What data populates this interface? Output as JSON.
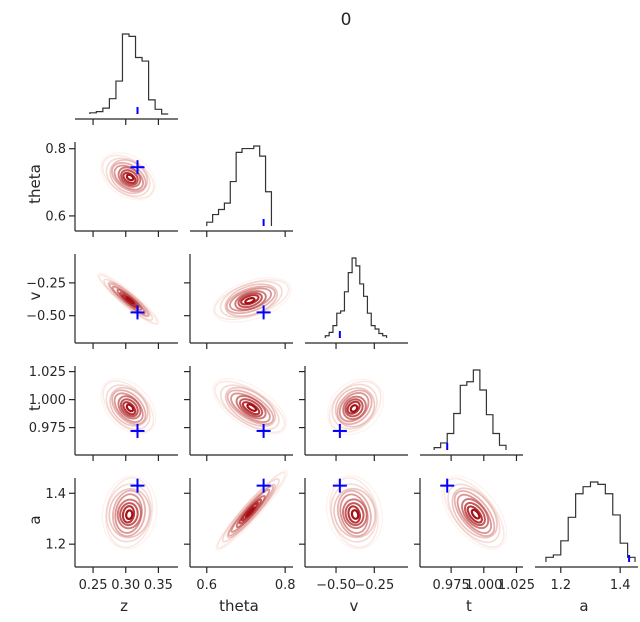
{
  "title": "0",
  "chart_data": {
    "type": "corner-plot",
    "title": "0",
    "parameters": [
      "z",
      "theta",
      "v",
      "t",
      "a"
    ],
    "axis_labels": [
      "z",
      "theta",
      "v",
      "t",
      "a"
    ],
    "ranges": {
      "z": [
        0.23,
        0.38
      ],
      "theta": [
        0.57,
        0.82
      ],
      "v": [
        -0.67,
        -0.03
      ],
      "t": [
        0.955,
        1.03
      ],
      "a": [
        1.13,
        1.46
      ]
    },
    "ticks": {
      "z": [
        0.25,
        0.3,
        0.35
      ],
      "theta": [
        0.6,
        0.8
      ],
      "v": [
        -0.5,
        -0.25
      ],
      "t": [
        0.975,
        1.0,
        1.025
      ],
      "a": [
        1.2,
        1.4
      ]
    },
    "tick_labels": {
      "z": [
        "0.25",
        "0.30",
        "0.35"
      ],
      "theta": [
        "0.6",
        "0.8"
      ],
      "v": [
        "−0.50",
        "−0.25"
      ],
      "v_x": [
        "−0.50",
        "−0.25"
      ],
      "t": [
        "0.975",
        "1.000",
        "1.025"
      ],
      "t_x": [
        "0.975",
        "1.000",
        "1.025"
      ],
      "a": [
        "1.2",
        "1.4"
      ]
    },
    "true_values": {
      "z": 0.318,
      "theta": 0.745,
      "v": -0.475,
      "t": 0.972,
      "a": 1.43
    },
    "histograms": {
      "z": {
        "edges": [
          0.245,
          0.255,
          0.265,
          0.275,
          0.285,
          0.295,
          0.305,
          0.315,
          0.325,
          0.335,
          0.345,
          0.355,
          0.365
        ],
        "counts": [
          1,
          2,
          5,
          13,
          28,
          68,
          66,
          48,
          45,
          12,
          4,
          0
        ]
      },
      "theta": {
        "edges": [
          0.6,
          0.615,
          0.63,
          0.645,
          0.66,
          0.675,
          0.69,
          0.705,
          0.72,
          0.735,
          0.75,
          0.765
        ],
        "counts": [
          3,
          9,
          13,
          18,
          35,
          58,
          61,
          61,
          63,
          55,
          27
        ]
      },
      "v": {
        "edges": [
          -0.57,
          -0.545,
          -0.52,
          -0.495,
          -0.47,
          -0.445,
          -0.42,
          -0.395,
          -0.37,
          -0.345,
          -0.32,
          -0.295,
          -0.27,
          -0.245,
          -0.22,
          -0.195,
          -0.17
        ],
        "counts": [
          2,
          5,
          11,
          22,
          24,
          41,
          58,
          71,
          64,
          48,
          37,
          22,
          11,
          8,
          4,
          2
        ]
      },
      "t": {
        "edges": [
          0.962,
          0.967,
          0.972,
          0.977,
          0.982,
          0.987,
          0.992,
          0.997,
          1.002,
          1.007,
          1.012,
          1.017
        ],
        "counts": [
          2,
          6,
          14,
          31,
          55,
          58,
          68,
          51,
          30,
          14,
          4
        ]
      },
      "a": {
        "edges": [
          1.15,
          1.175,
          1.2,
          1.225,
          1.25,
          1.275,
          1.3,
          1.325,
          1.35,
          1.375,
          1.4,
          1.425,
          1.45
        ],
        "counts": [
          4,
          6,
          18,
          38,
          58,
          64,
          68,
          66,
          58,
          40,
          16,
          4
        ]
      }
    },
    "kde_2d": [
      {
        "x": "z",
        "y": "theta",
        "mean": [
          0.305,
          0.715
        ],
        "sd": [
          0.016,
          0.027
        ],
        "rho": -0.35
      },
      {
        "x": "z",
        "y": "v",
        "mean": [
          0.305,
          -0.38
        ],
        "sd": [
          0.018,
          0.075
        ],
        "rho": -0.93
      },
      {
        "x": "theta",
        "y": "v",
        "mean": [
          0.712,
          -0.38
        ],
        "sd": [
          0.038,
          0.065
        ],
        "rho": 0.45
      },
      {
        "x": "z",
        "y": "t",
        "mean": [
          0.305,
          0.993
        ],
        "sd": [
          0.016,
          0.0095
        ],
        "rho": -0.4
      },
      {
        "x": "theta",
        "y": "t",
        "mean": [
          0.712,
          0.993
        ],
        "sd": [
          0.036,
          0.0095
        ],
        "rho": -0.6
      },
      {
        "x": "v",
        "y": "t",
        "mean": [
          -0.38,
          0.993
        ],
        "sd": [
          0.07,
          0.0095
        ],
        "rho": 0.25
      },
      {
        "x": "z",
        "y": "a",
        "mean": [
          0.305,
          1.32
        ],
        "sd": [
          0.016,
          0.055
        ],
        "rho": 0.1
      },
      {
        "x": "theta",
        "y": "a",
        "mean": [
          0.712,
          1.33
        ],
        "sd": [
          0.035,
          0.06
        ],
        "rho": 0.95
      },
      {
        "x": "v",
        "y": "a",
        "mean": [
          -0.38,
          1.32
        ],
        "sd": [
          0.07,
          0.055
        ],
        "rho": -0.15
      },
      {
        "x": "t",
        "y": "a",
        "mean": [
          0.993,
          1.32
        ],
        "sd": [
          0.0095,
          0.055
        ],
        "rho": -0.55
      }
    ],
    "contour_levels": 10,
    "colors": {
      "histogram": "#333333",
      "contour_light": "#fde0d2",
      "contour_dark": "#a50f15",
      "truth_marker": "#0000ff",
      "axes": "#262626"
    }
  }
}
